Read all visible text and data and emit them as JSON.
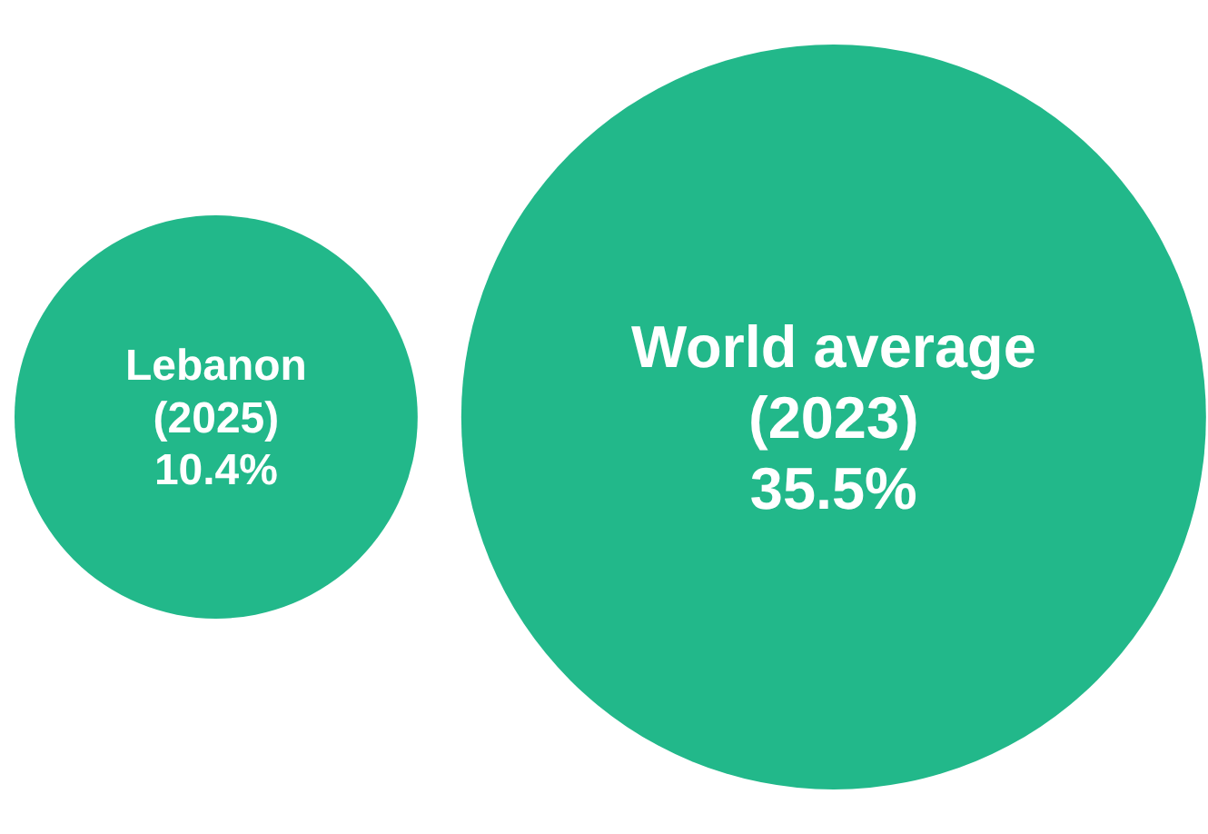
{
  "chart_data": {
    "type": "other",
    "categories": [
      "Lebanon (2025)",
      "World average (2023)"
    ],
    "values": [
      10.4,
      35.5
    ],
    "value_labels": [
      "10.4%",
      "35.5%"
    ],
    "color": "#22b88a"
  }
}
